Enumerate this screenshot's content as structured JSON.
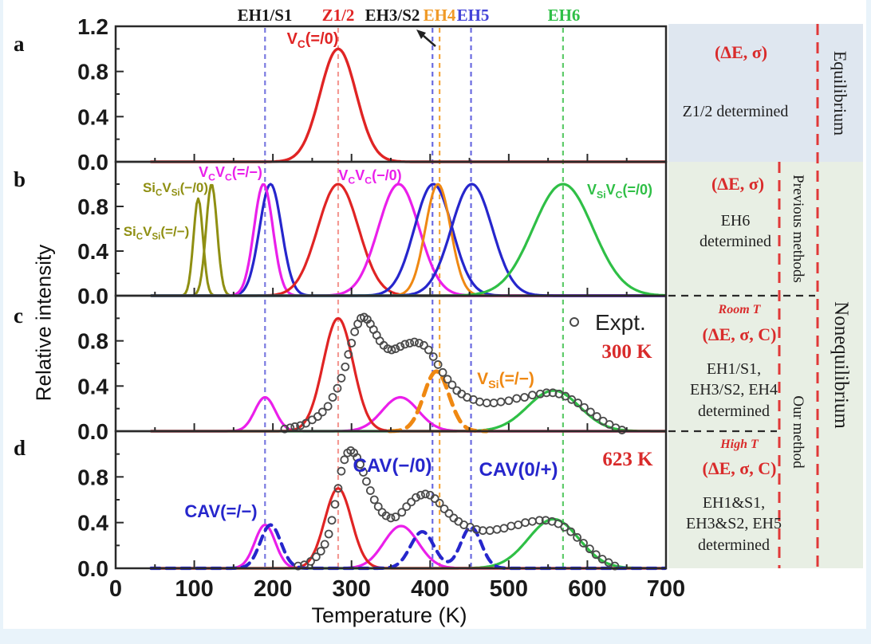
{
  "figure": {
    "panel_letters": [
      "a",
      "b",
      "c",
      "d"
    ],
    "axes": {
      "x_label": "Temperature (K)",
      "y_label": "Relative intensity"
    },
    "legend": {
      "expt_label": "Expt.",
      "panel_c_temp": "300 K",
      "panel_d_temp": "623 K"
    },
    "backgrounds": {
      "page": "#e9f3fa",
      "figure": "#ffffff",
      "row_a": "#dfe7f0",
      "rows_bcd": "#e8efe4"
    },
    "plot_labels": {
      "a_vc": [
        [
          "V"
        ],
        [
          "C",
          "sub"
        ],
        [
          "(=/0)"
        ]
      ],
      "b_sicvsi_m0": [
        [
          "Si"
        ],
        [
          "C",
          "sub"
        ],
        [
          "V"
        ],
        [
          "Si",
          "sub"
        ],
        [
          "(−/0)"
        ]
      ],
      "b_sicvsi_eqm": [
        [
          "Si"
        ],
        [
          "C",
          "sub"
        ],
        [
          "V"
        ],
        [
          "Si",
          "sub"
        ],
        [
          "(=/−)"
        ]
      ],
      "b_vcvc_eqm": [
        [
          "V"
        ],
        [
          "C",
          "sub"
        ],
        [
          "V"
        ],
        [
          "C",
          "sub"
        ],
        [
          "(=/−)"
        ]
      ],
      "b_vcvc_m0": [
        [
          "V"
        ],
        [
          "C",
          "sub"
        ],
        [
          "V"
        ],
        [
          "C",
          "sub"
        ],
        [
          "(−/0)"
        ]
      ],
      "b_vsivc": [
        [
          "V"
        ],
        [
          "Si",
          "sub"
        ],
        [
          "V"
        ],
        [
          "C",
          "sub"
        ],
        [
          "(=/0)"
        ]
      ],
      "c_vsi": [
        [
          "V"
        ],
        [
          "Si",
          "sub"
        ],
        [
          "(=/−)"
        ]
      ],
      "d_cav_eqm": "CAV(=/−)",
      "d_cav_m0": "CAV(−/0)",
      "d_cav_0p": "CAV(0/+)"
    },
    "annotations": {
      "accent_red": "#d92b2b",
      "equilibrium": "Equilibrium",
      "nonequilibrium": "Nonequilibrium",
      "previous_methods": "Previous methods",
      "our_method": "Our method",
      "row_a": {
        "params": "(ΔE, σ)",
        "text": "Z1/2 determined"
      },
      "row_b": {
        "params": "(ΔE, σ)",
        "text": "EH6\ndetermined"
      },
      "row_c": {
        "tag": "Room T",
        "params": "(ΔE, σ, C)",
        "text": "EH1/S1,\nEH3/S2, EH4\ndetermined"
      },
      "row_d": {
        "tag": "High T",
        "params": "(ΔE, σ, C)",
        "text": "EH1&S1,\nEH3&S2, EH5\ndetermined"
      }
    }
  },
  "chart_data": {
    "type": "line",
    "xlabel": "Temperature (K)",
    "ylabel": "Relative intensity",
    "x_range": [
      0,
      700
    ],
    "x_ticks": [
      0,
      100,
      200,
      300,
      400,
      500,
      600,
      700
    ],
    "x_minor_step": 50,
    "ylim": [
      0,
      1.2
    ],
    "y_major_step": 0.4,
    "y_minor_step": 0.2,
    "y_ticks": {
      "a": [
        "0.0",
        "0.4",
        "0.8",
        "1.2"
      ],
      "b": [
        "0.0",
        "0.4",
        "0.8"
      ],
      "c": [
        "0.0",
        "0.4",
        "0.8"
      ],
      "d": [
        "0.0",
        "0.4",
        "0.8"
      ]
    },
    "separators": {
      "red_dash": "#e03838",
      "black_dash": "#2a2a2a",
      "axis": "#2a2a2a",
      "tick_label": "#1a1a1a"
    },
    "arrow_color": "#222222",
    "vlines": [
      {
        "label": "EH1/S1",
        "T": 190,
        "line_color": "#7a7ae0",
        "label_color": "#1a1a1a"
      },
      {
        "label": "Z1/2",
        "T": 283,
        "line_color": "#f49a94",
        "label_color": "#e02424"
      },
      {
        "label": "EH3/S2",
        "T": 403,
        "line_color": "#6a6ae0",
        "label_color": "#1a1a1a"
      },
      {
        "label": "EH4",
        "T": 412,
        "line_color": "#f5a93e",
        "label_color": "#f09a28"
      },
      {
        "label": "EH5",
        "T": 452,
        "line_color": "#6a6ae0",
        "label_color": "#4343d8"
      },
      {
        "label": "EH6",
        "T": 569,
        "line_color": "#5ecb6a",
        "label_color": "#2fbf46"
      }
    ],
    "panels": [
      {
        "id": "a",
        "curves": [
          {
            "name": "VC(=/0)",
            "color": "#e02424",
            "width": 3.4,
            "peaks": [
              [
                283,
                23,
                1.0
              ]
            ]
          }
        ]
      },
      {
        "id": "b",
        "curves": [
          {
            "name": "SiCVSi(=/-)",
            "color": "#8f8f12",
            "width": 3.0,
            "peaks": [
              [
                105,
                6,
                0.87
              ]
            ]
          },
          {
            "name": "SiCVSi(-/0)",
            "color": "#8f8f12",
            "width": 3.0,
            "peaks": [
              [
                122,
                7,
                1.0
              ]
            ]
          },
          {
            "name": "CAV blue 197",
            "color": "#2626cc",
            "width": 3.2,
            "peaks": [
              [
                197,
                14,
                1.0
              ]
            ]
          },
          {
            "name": "VCVC(=/-)",
            "color": "#ea1fea",
            "width": 3.2,
            "peaks": [
              [
                188,
                12,
                1.0
              ]
            ]
          },
          {
            "name": "Z1/2",
            "color": "#e02424",
            "width": 3.2,
            "peaks": [
              [
                283,
                26,
                1.0
              ]
            ]
          },
          {
            "name": "VCVC(-/0)",
            "color": "#ea1fea",
            "width": 3.2,
            "peaks": [
              [
                360,
                26,
                1.0
              ]
            ]
          },
          {
            "name": "blue 404",
            "color": "#2626cc",
            "width": 3.2,
            "peaks": [
              [
                404,
                24,
                1.0
              ]
            ]
          },
          {
            "name": "orange 410",
            "color": "#ef8812",
            "width": 3.0,
            "peaks": [
              [
                410,
                16,
                1.0
              ]
            ]
          },
          {
            "name": "blue 453",
            "color": "#2626cc",
            "width": 3.2,
            "peaks": [
              [
                453,
                26,
                1.0
              ]
            ]
          },
          {
            "name": "VSiVC(=/0)",
            "color": "#2fbf46",
            "width": 3.2,
            "peaks": [
              [
                569,
                38,
                1.0
              ]
            ]
          }
        ]
      },
      {
        "id": "c",
        "curves": [
          {
            "name": "magenta",
            "color": "#ea1fea",
            "width": 3.2,
            "peaks": [
              [
                190,
                13,
                0.3
              ],
              [
                362,
                23,
                0.3
              ]
            ]
          },
          {
            "name": "green",
            "color": "#2fbf46",
            "width": 3.2,
            "peaks": [
              [
                557,
                33,
                0.36
              ]
            ]
          },
          {
            "name": "red Z1/2",
            "color": "#e02424",
            "width": 3.2,
            "peaks": [
              [
                283,
                19,
                1.0
              ]
            ]
          },
          {
            "name": "VSi(=/-)",
            "color": "#ef8812",
            "width": 5.0,
            "dash": [
              14,
              9
            ],
            "xrange": [
              348,
              472
            ],
            "peaks": [
              [
                408,
                16,
                0.53
              ]
            ]
          }
        ],
        "scatter": {
          "label": "Expt.",
          "color": "#4a4a4a",
          "points": [
            [
              215,
              0.02
            ],
            [
              222,
              0.03
            ],
            [
              228,
              0.04
            ],
            [
              235,
              0.05
            ],
            [
              242,
              0.07
            ],
            [
              250,
              0.1
            ],
            [
              257,
              0.13
            ],
            [
              263,
              0.17
            ],
            [
              270,
              0.22
            ],
            [
              276,
              0.3
            ],
            [
              282,
              0.38
            ],
            [
              287,
              0.47
            ],
            [
              292,
              0.57
            ],
            [
              296,
              0.68
            ],
            [
              300,
              0.78
            ],
            [
              304,
              0.88
            ],
            [
              308,
              0.95
            ],
            [
              312,
              1.0
            ],
            [
              316,
              1.01
            ],
            [
              320,
              0.99
            ],
            [
              324,
              0.95
            ],
            [
              328,
              0.9
            ],
            [
              332,
              0.85
            ],
            [
              336,
              0.8
            ],
            [
              341,
              0.76
            ],
            [
              346,
              0.73
            ],
            [
              351,
              0.72
            ],
            [
              356,
              0.73
            ],
            [
              362,
              0.75
            ],
            [
              368,
              0.77
            ],
            [
              374,
              0.78
            ],
            [
              380,
              0.79
            ],
            [
              386,
              0.78
            ],
            [
              392,
              0.76
            ],
            [
              398,
              0.72
            ],
            [
              404,
              0.66
            ],
            [
              410,
              0.59
            ],
            [
              416,
              0.52
            ],
            [
              422,
              0.46
            ],
            [
              428,
              0.41
            ],
            [
              434,
              0.36
            ],
            [
              440,
              0.33
            ],
            [
              447,
              0.3
            ],
            [
              455,
              0.28
            ],
            [
              463,
              0.26
            ],
            [
              472,
              0.25
            ],
            [
              481,
              0.25
            ],
            [
              490,
              0.26
            ],
            [
              500,
              0.27
            ],
            [
              510,
              0.29
            ],
            [
              520,
              0.3
            ],
            [
              530,
              0.32
            ],
            [
              540,
              0.33
            ],
            [
              548,
              0.34
            ],
            [
              556,
              0.34
            ],
            [
              564,
              0.33
            ],
            [
              572,
              0.31
            ],
            [
              580,
              0.28
            ],
            [
              588,
              0.25
            ],
            [
              596,
              0.21
            ],
            [
              604,
              0.17
            ],
            [
              612,
              0.13
            ],
            [
              620,
              0.09
            ],
            [
              628,
              0.06
            ],
            [
              636,
              0.03
            ],
            [
              644,
              0.01
            ]
          ]
        }
      },
      {
        "id": "d",
        "curves": [
          {
            "name": "magenta",
            "color": "#ea1fea",
            "width": 3.2,
            "peaks": [
              [
                190,
                13,
                0.38
              ],
              [
                363,
                22,
                0.37
              ]
            ]
          },
          {
            "name": "green",
            "color": "#2fbf46",
            "width": 3.2,
            "peaks": [
              [
                557,
                32,
                0.43
              ]
            ]
          },
          {
            "name": "red Z1/2",
            "color": "#e02424",
            "width": 3.2,
            "peaks": [
              [
                283,
                17,
                0.7
              ]
            ]
          },
          {
            "name": "CAV dashed",
            "color": "#2626cc",
            "width": 4.2,
            "dash": [
              11,
              8
            ],
            "peaks": [
              [
                197,
                13,
                0.38
              ],
              [
                390,
                15,
                0.32
              ],
              [
                452,
                13,
                0.36
              ]
            ]
          }
        ],
        "scatter": {
          "label": "Expt.",
          "color": "#4a4a4a",
          "points": [
            [
              232,
              0.02
            ],
            [
              240,
              0.03
            ],
            [
              248,
              0.06
            ],
            [
              255,
              0.1
            ],
            [
              261,
              0.15
            ],
            [
              266,
              0.21
            ],
            [
              271,
              0.3
            ],
            [
              275,
              0.42
            ],
            [
              279,
              0.56
            ],
            [
              283,
              0.7
            ],
            [
              287,
              0.85
            ],
            [
              291,
              0.95
            ],
            [
              295,
              1.01
            ],
            [
              299,
              1.03
            ],
            [
              303,
              1.01
            ],
            [
              307,
              0.97
            ],
            [
              311,
              0.91
            ],
            [
              315,
              0.84
            ],
            [
              319,
              0.76
            ],
            [
              324,
              0.68
            ],
            [
              329,
              0.6
            ],
            [
              334,
              0.54
            ],
            [
              339,
              0.49
            ],
            [
              344,
              0.46
            ],
            [
              350,
              0.44
            ],
            [
              356,
              0.45
            ],
            [
              364,
              0.49
            ],
            [
              370,
              0.54
            ],
            [
              376,
              0.58
            ],
            [
              382,
              0.62
            ],
            [
              388,
              0.64
            ],
            [
              394,
              0.65
            ],
            [
              400,
              0.64
            ],
            [
              406,
              0.61
            ],
            [
              412,
              0.57
            ],
            [
              418,
              0.52
            ],
            [
              424,
              0.48
            ],
            [
              430,
              0.44
            ],
            [
              436,
              0.41
            ],
            [
              443,
              0.38
            ],
            [
              451,
              0.36
            ],
            [
              459,
              0.34
            ],
            [
              467,
              0.33
            ],
            [
              476,
              0.33
            ],
            [
              485,
              0.34
            ],
            [
              494,
              0.35
            ],
            [
              503,
              0.37
            ],
            [
              512,
              0.38
            ],
            [
              521,
              0.4
            ],
            [
              530,
              0.41
            ],
            [
              539,
              0.42
            ],
            [
              547,
              0.42
            ],
            [
              555,
              0.41
            ],
            [
              563,
              0.39
            ],
            [
              571,
              0.36
            ],
            [
              579,
              0.32
            ],
            [
              587,
              0.27
            ],
            [
              595,
              0.22
            ],
            [
              603,
              0.17
            ],
            [
              611,
              0.12
            ],
            [
              619,
              0.08
            ],
            [
              627,
              0.05
            ],
            [
              635,
              0.02
            ]
          ]
        }
      }
    ]
  }
}
